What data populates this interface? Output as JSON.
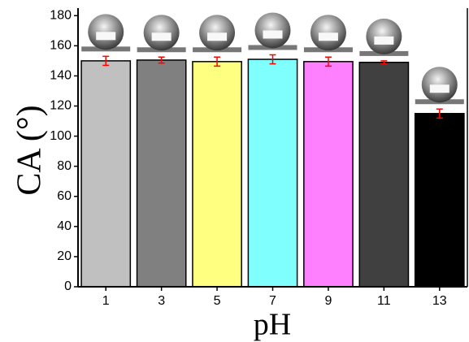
{
  "chart_data": {
    "type": "bar",
    "x_label": "pH",
    "y_label": "CA (°)",
    "categories": [
      "1",
      "3",
      "5",
      "7",
      "9",
      "11",
      "13"
    ],
    "values": [
      150,
      150.5,
      149.5,
      151,
      149.5,
      149,
      115
    ],
    "errors": [
      3,
      2,
      3,
      3,
      3,
      1,
      3
    ],
    "colors": [
      "#c0c0c0",
      "#808080",
      "#ffff80",
      "#80ffff",
      "#ff80ff",
      "#404040",
      "#000000"
    ],
    "error_color": "#ff0000",
    "ylim": [
      0,
      185
    ],
    "yticks": [
      0,
      20,
      40,
      60,
      80,
      100,
      120,
      140,
      160,
      180
    ]
  }
}
